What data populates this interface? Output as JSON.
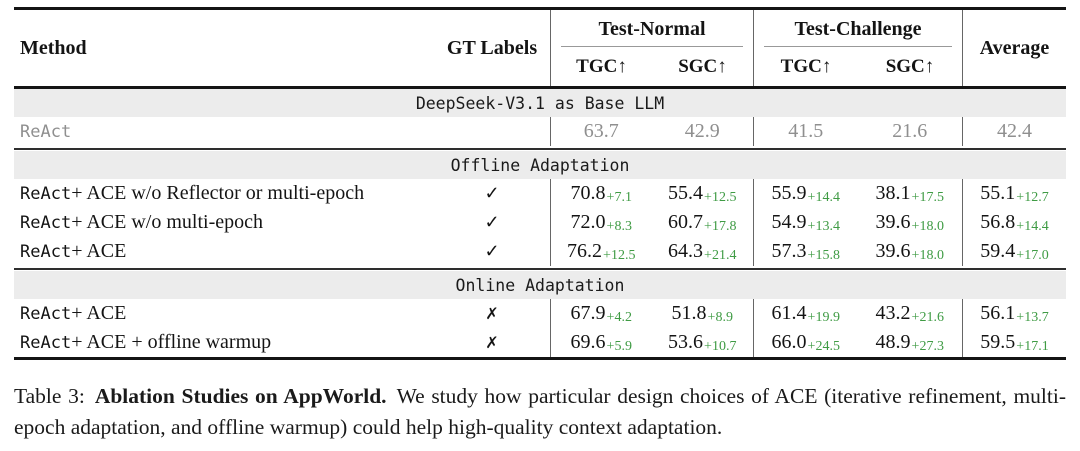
{
  "table": {
    "header": {
      "method": "Method",
      "gt_labels": "GT Labels",
      "groups": [
        {
          "label": "Test-Normal"
        },
        {
          "label": "Test-Challenge"
        }
      ],
      "subcols": [
        "TGC↑",
        "SGC↑",
        "TGC↑",
        "SGC↑"
      ],
      "average": "Average"
    },
    "sections": [
      {
        "banner": "DeepSeek-V3.1 as Base LLM",
        "rows": [
          {
            "method_mono": "ReAct",
            "method_rest": "",
            "gt": "",
            "muted": true,
            "cells": [
              {
                "v": "63.7"
              },
              {
                "v": "42.9"
              },
              {
                "v": "41.5"
              },
              {
                "v": "21.6"
              },
              {
                "v": "42.4"
              }
            ]
          }
        ]
      },
      {
        "banner": "Offline Adaptation",
        "rows": [
          {
            "method_mono": "ReAct",
            "method_rest": " + ACE w/o Reflector or multi-epoch",
            "gt": "check",
            "muted": false,
            "cells": [
              {
                "v": "70.8",
                "d": "+7.1"
              },
              {
                "v": "55.4",
                "d": "+12.5"
              },
              {
                "v": "55.9",
                "d": "+14.4"
              },
              {
                "v": "38.1",
                "d": "+17.5"
              },
              {
                "v": "55.1",
                "d": "+12.7"
              }
            ]
          },
          {
            "method_mono": "ReAct",
            "method_rest": " + ACE w/o multi-epoch",
            "gt": "check",
            "muted": false,
            "cells": [
              {
                "v": "72.0",
                "d": "+8.3"
              },
              {
                "v": "60.7",
                "d": "+17.8"
              },
              {
                "v": "54.9",
                "d": "+13.4"
              },
              {
                "v": "39.6",
                "d": "+18.0"
              },
              {
                "v": "56.8",
                "d": "+14.4"
              }
            ]
          },
          {
            "method_mono": "ReAct",
            "method_rest": " + ACE",
            "gt": "check",
            "muted": false,
            "cells": [
              {
                "v": "76.2",
                "d": "+12.5"
              },
              {
                "v": "64.3",
                "d": "+21.4"
              },
              {
                "v": "57.3",
                "d": "+15.8"
              },
              {
                "v": "39.6",
                "d": "+18.0"
              },
              {
                "v": "59.4",
                "d": "+17.0"
              }
            ]
          }
        ]
      },
      {
        "banner": "Online Adaptation",
        "rows": [
          {
            "method_mono": "ReAct",
            "method_rest": " + ACE",
            "gt": "cross",
            "muted": false,
            "cells": [
              {
                "v": "67.9",
                "d": "+4.2"
              },
              {
                "v": "51.8",
                "d": "+8.9"
              },
              {
                "v": "61.4",
                "d": "+19.9"
              },
              {
                "v": "43.2",
                "d": "+21.6"
              },
              {
                "v": "56.1",
                "d": "+13.7"
              }
            ]
          },
          {
            "method_mono": "ReAct",
            "method_rest": " + ACE + offline warmup",
            "gt": "cross",
            "muted": false,
            "cells": [
              {
                "v": "69.6",
                "d": "+5.9"
              },
              {
                "v": "53.6",
                "d": "+10.7"
              },
              {
                "v": "66.0",
                "d": "+24.5"
              },
              {
                "v": "48.9",
                "d": "+27.3"
              },
              {
                "v": "59.5",
                "d": "+17.1"
              }
            ]
          }
        ]
      }
    ]
  },
  "symbols": {
    "check": "✓",
    "cross": "✗"
  },
  "caption": {
    "prefix": "Table 3:",
    "bold": "Ablation Studies on AppWorld.",
    "text": "We study how particular design choices of ACE (iterative refinement, multi-epoch adaptation, and offline warmup) could help high-quality context adaptation."
  },
  "colors": {
    "delta_green": "#3f9b44",
    "muted_gray": "#8f8f8f",
    "banner_bg": "#ececec"
  }
}
